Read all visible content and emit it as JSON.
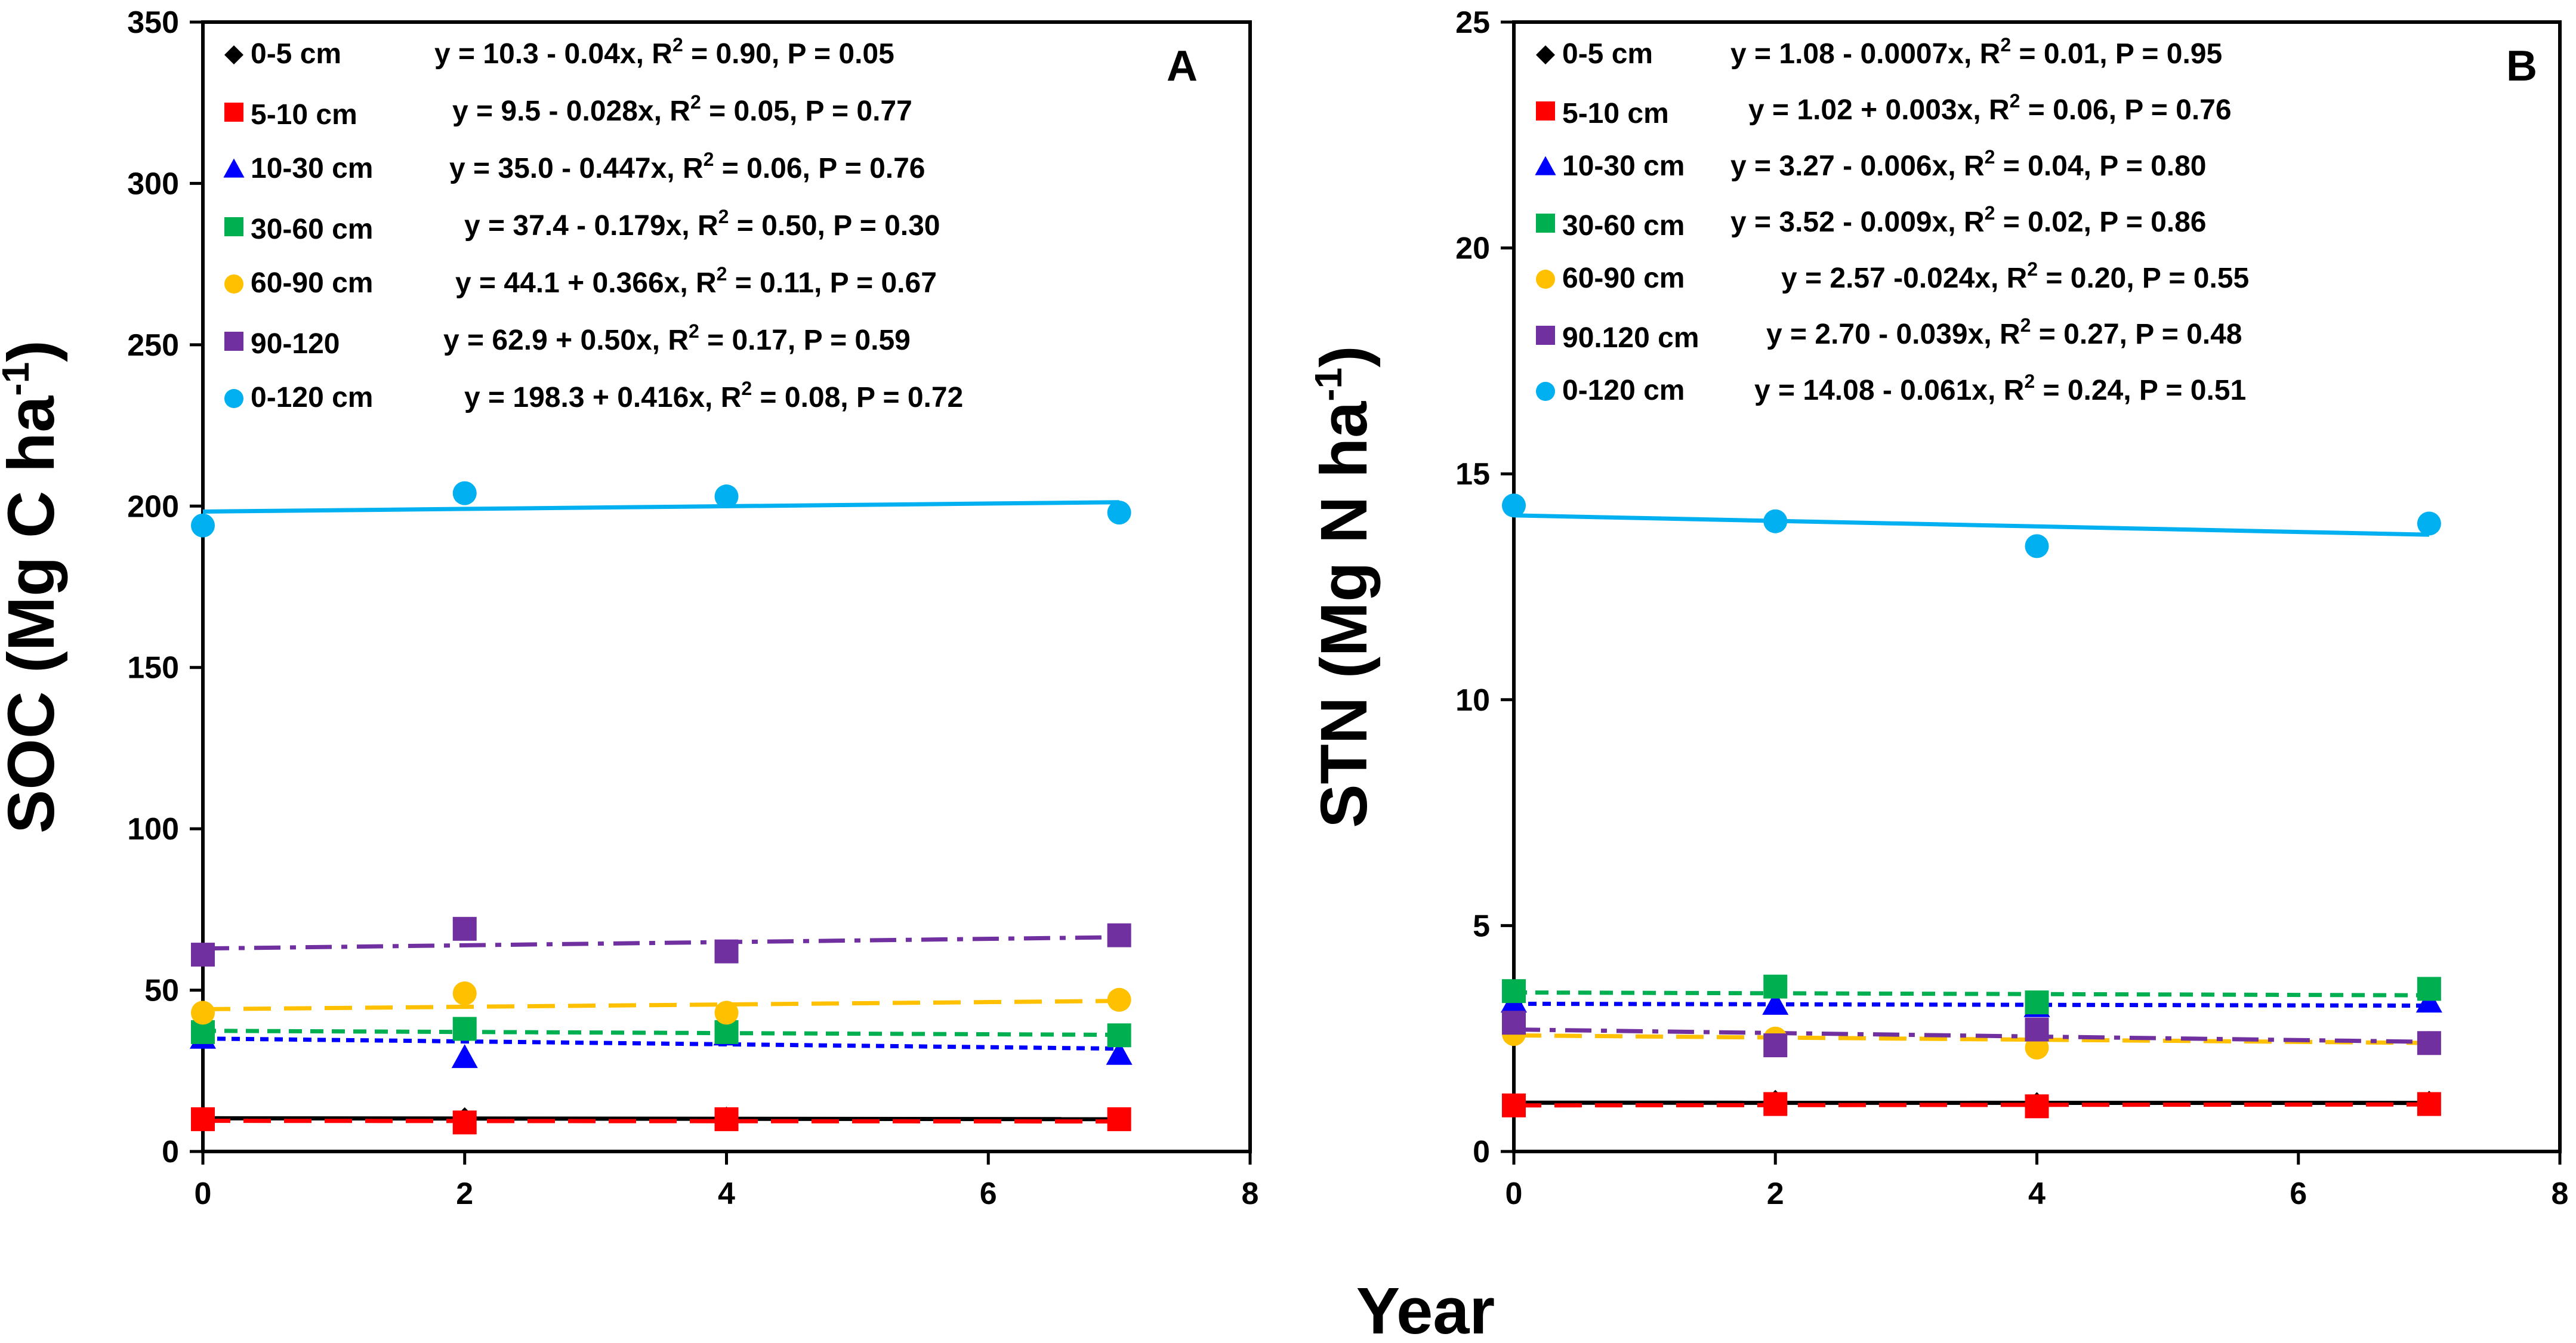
{
  "figure": {
    "shared_xlabel": "Year"
  },
  "chart_data": [
    {
      "type": "scatter",
      "panel_label": "A",
      "ylabel_main": "SOC (Mg C ha",
      "ylabel_sup": "-1",
      "ylabel_close": ")",
      "xlim": [
        0,
        8
      ],
      "ylim": [
        0,
        350
      ],
      "xticks": [
        0,
        2,
        4,
        6,
        8
      ],
      "yticks": [
        0,
        50,
        100,
        150,
        200,
        250,
        300,
        350
      ],
      "legend_position": "top-left",
      "series": [
        {
          "name": "0-5 cm",
          "marker": "diamond",
          "color": "#000000",
          "line": "solid",
          "eq_pre": "y = 10.3 - 0.04x, R",
          "eq_sup": "2",
          "eq_post": " = 0.90, P  = 0.05",
          "intercept": 10.3,
          "slope": -0.04,
          "x": [
            0,
            2,
            4,
            7
          ],
          "y": [
            10.5,
            10.0,
            10.2,
            10.0
          ]
        },
        {
          "name": "5-10 cm",
          "marker": "square",
          "color": "#ff0000",
          "line": "longdash",
          "eq_pre": "y = 9.5 - 0.028x, R",
          "eq_sup": "2",
          "eq_post": " = 0.05, P = 0.77",
          "intercept": 9.5,
          "slope": -0.028,
          "x": [
            0,
            2,
            4,
            7
          ],
          "y": [
            10,
            9,
            10,
            10
          ]
        },
        {
          "name": "10-30 cm",
          "marker": "triangle",
          "color": "#0000ff",
          "line": "dotted",
          "eq_pre": "y = 35.0 - 0.447x, R",
          "eq_sup": "2",
          "eq_post": " = 0.06, P = 0.76",
          "intercept": 35.0,
          "slope": -0.447,
          "x": [
            0,
            2,
            4,
            7
          ],
          "y": [
            35,
            29,
            36,
            30
          ]
        },
        {
          "name": "30-60 cm",
          "marker": "square",
          "color": "#00b050",
          "line": "dashed",
          "eq_pre": "y = 37.4 - 0.179x, R",
          "eq_sup": "2",
          "eq_post": " = 0.50, P = 0.30",
          "intercept": 37.4,
          "slope": -0.179,
          "x": [
            0,
            2,
            4,
            7
          ],
          "y": [
            37,
            38,
            37,
            36
          ]
        },
        {
          "name": "60-90 cm",
          "marker": "circle",
          "color": "#ffc000",
          "line": "longdash",
          "eq_pre": "y = 44.1 + 0.366x, R",
          "eq_sup": "2",
          "eq_post": " = 0.11, P = 0.67",
          "intercept": 44.1,
          "slope": 0.366,
          "x": [
            0,
            2,
            4,
            7
          ],
          "y": [
            43,
            49,
            43,
            47
          ]
        },
        {
          "name": "90-120",
          "marker": "square",
          "color": "#7030a0",
          "line": "dashdot",
          "eq_pre": "y = 62.9 + 0.50x, R",
          "eq_sup": "2",
          "eq_post": " = 0.17, P = 0.59",
          "intercept": 62.9,
          "slope": 0.5,
          "x": [
            0,
            2,
            4,
            7
          ],
          "y": [
            61,
            69,
            62,
            67
          ]
        },
        {
          "name": "0-120 cm",
          "marker": "circle",
          "color": "#00b0f0",
          "line": "solid",
          "eq_pre": "y = 198.3 + 0.416x, R",
          "eq_sup": "2",
          "eq_post": " = 0.08, P = 0.72",
          "intercept": 198.3,
          "slope": 0.416,
          "x": [
            0,
            2,
            4,
            7
          ],
          "y": [
            194,
            204,
            203,
            198
          ]
        }
      ]
    },
    {
      "type": "scatter",
      "panel_label": "B",
      "ylabel_main": "STN (Mg N ha",
      "ylabel_sup": "-1",
      "ylabel_close": ")",
      "xlim": [
        0,
        8
      ],
      "ylim": [
        0,
        25
      ],
      "xticks": [
        0,
        2,
        4,
        6,
        8
      ],
      "yticks": [
        0,
        5,
        10,
        15,
        20,
        25
      ],
      "legend_position": "top-left",
      "series": [
        {
          "name": "0-5 cm",
          "marker": "diamond",
          "color": "#000000",
          "line": "solid",
          "eq_pre": "y = 1.08 - 0.0007x, R",
          "eq_sup": "2",
          "eq_post": " = 0.01, P = 0.95",
          "intercept": 1.08,
          "slope": -0.0007,
          "x": [
            0,
            2,
            4,
            7
          ],
          "y": [
            1.05,
            1.1,
            1.05,
            1.08
          ]
        },
        {
          "name": "5-10 cm",
          "marker": "square",
          "color": "#ff0000",
          "line": "longdash",
          "eq_pre": "y = 1.02 + 0.003x, R",
          "eq_sup": "2",
          "eq_post": " = 0.06, P = 0.76",
          "intercept": 1.02,
          "slope": 0.003,
          "x": [
            0,
            2,
            4,
            7
          ],
          "y": [
            1.02,
            1.05,
            1.0,
            1.05
          ]
        },
        {
          "name": "10-30 cm",
          "marker": "triangle",
          "color": "#0000ff",
          "line": "dotted",
          "eq_pre": "y = 3.27 - 0.006x, R",
          "eq_sup": "2",
          "eq_post": " = 0.04, P = 0.80",
          "intercept": 3.27,
          "slope": -0.006,
          "x": [
            0,
            2,
            4,
            7
          ],
          "y": [
            3.3,
            3.25,
            3.2,
            3.3
          ]
        },
        {
          "name": "30-60 cm",
          "marker": "square",
          "color": "#00b050",
          "line": "dashed",
          "eq_pre": "y = 3.52 - 0.009x, R",
          "eq_sup": "2",
          "eq_post": " = 0.02, P = 0.86",
          "intercept": 3.52,
          "slope": -0.009,
          "x": [
            0,
            2,
            4,
            7
          ],
          "y": [
            3.55,
            3.65,
            3.3,
            3.6
          ]
        },
        {
          "name": "60-90 cm",
          "marker": "circle",
          "color": "#ffc000",
          "line": "longdash",
          "eq_pre": "y = 2.57 -0.024x, R",
          "eq_sup": "2",
          "eq_post": " = 0.20, P = 0.55",
          "intercept": 2.57,
          "slope": -0.024,
          "x": [
            0,
            2,
            4,
            7
          ],
          "y": [
            2.6,
            2.5,
            2.3,
            2.4
          ]
        },
        {
          "name": "90.120 cm",
          "marker": "square",
          "color": "#7030a0",
          "line": "dashdot",
          "eq_pre": "y = 2.70 - 0.039x, R",
          "eq_sup": "2",
          "eq_post": " = 0.27, P = 0.48",
          "intercept": 2.7,
          "slope": -0.039,
          "x": [
            0,
            2,
            4,
            7
          ],
          "y": [
            2.85,
            2.35,
            2.7,
            2.4
          ]
        },
        {
          "name": "0-120 cm",
          "marker": "circle",
          "color": "#00b0f0",
          "line": "solid",
          "eq_pre": "y = 14.08 - 0.061x, R",
          "eq_sup": "2",
          "eq_post": " = 0.24, P  = 0.51",
          "intercept": 14.08,
          "slope": -0.061,
          "x": [
            0,
            2,
            4,
            7
          ],
          "y": [
            14.3,
            13.95,
            13.4,
            13.9
          ]
        }
      ]
    }
  ]
}
